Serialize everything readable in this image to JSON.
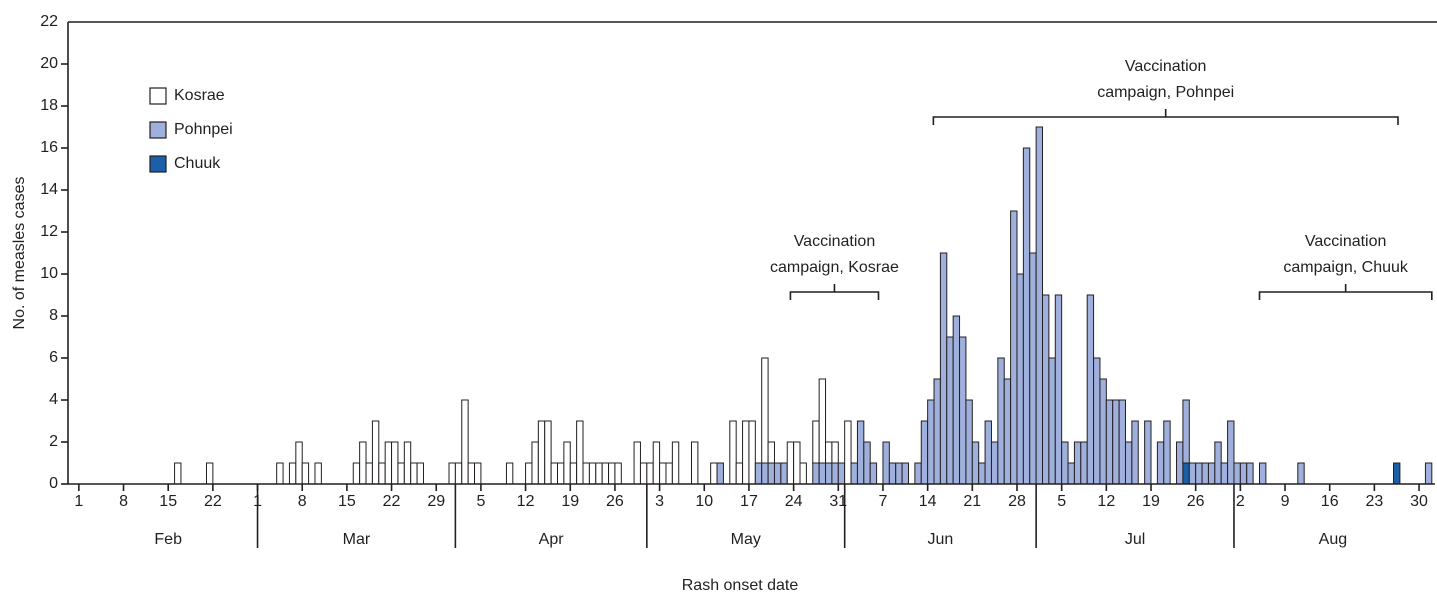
{
  "chart_data": {
    "type": "bar",
    "stacked": true,
    "xlabel": "Rash onset date",
    "ylabel": "No. of measles cases",
    "xlim": [
      -1.7,
      212.5
    ],
    "ylim": [
      0,
      22
    ],
    "yticks": [
      0,
      2,
      4,
      6,
      8,
      10,
      12,
      14,
      16,
      18,
      20,
      22
    ],
    "xticks": [
      {
        "value": 0,
        "label": "1"
      },
      {
        "value": 7,
        "label": "8"
      },
      {
        "value": 14,
        "label": "15"
      },
      {
        "value": 21,
        "label": "22"
      },
      {
        "value": 28,
        "label": "1"
      },
      {
        "value": 35,
        "label": "8"
      },
      {
        "value": 42,
        "label": "15"
      },
      {
        "value": 49,
        "label": "22"
      },
      {
        "value": 56,
        "label": "29"
      },
      {
        "value": 63,
        "label": "5"
      },
      {
        "value": 70,
        "label": "12"
      },
      {
        "value": 77,
        "label": "19"
      },
      {
        "value": 84,
        "label": "26"
      },
      {
        "value": 91,
        "label": "3"
      },
      {
        "value": 98,
        "label": "10"
      },
      {
        "value": 105,
        "label": "17"
      },
      {
        "value": 112,
        "label": "24"
      },
      {
        "value": 119,
        "label": "31"
      },
      {
        "value": 126,
        "label": "7"
      },
      {
        "value": 133,
        "label": "14"
      },
      {
        "value": 140,
        "label": "21"
      },
      {
        "value": 147,
        "label": "28"
      },
      {
        "value": 154,
        "label": "5"
      },
      {
        "value": 161,
        "label": "12"
      },
      {
        "value": 168,
        "label": "19"
      },
      {
        "value": 175,
        "label": "26"
      },
      {
        "value": 182,
        "label": "2"
      },
      {
        "value": 189,
        "label": "9"
      },
      {
        "value": 196,
        "label": "16"
      },
      {
        "value": 203,
        "label": "23"
      },
      {
        "value": 210,
        "label": "30"
      }
    ],
    "months": [
      {
        "label": "Feb",
        "start": 0,
        "end": 28
      },
      {
        "label": "Mar",
        "start": 28,
        "end": 59
      },
      {
        "label": "Apr",
        "start": 59,
        "end": 89
      },
      {
        "label": "May",
        "start": 89,
        "end": 120
      },
      {
        "label": "Jun",
        "start": 120,
        "end": 150
      },
      {
        "label": "Jul",
        "start": 150,
        "end": 181
      },
      {
        "label": "Aug",
        "start": 181,
        "end": 212
      }
    ],
    "legend": "upper left",
    "x": [
      15,
      20,
      31,
      33,
      34,
      35,
      37,
      43,
      44,
      45,
      46,
      47,
      48,
      49,
      50,
      51,
      52,
      53,
      58,
      59,
      60,
      61,
      62,
      67,
      70,
      71,
      72,
      73,
      74,
      75,
      76,
      77,
      78,
      79,
      80,
      81,
      82,
      83,
      84,
      87,
      88,
      89,
      90,
      91,
      92,
      93,
      96,
      99,
      100,
      102,
      103,
      104,
      105,
      106,
      107,
      108,
      109,
      110,
      111,
      112,
      113,
      115,
      116,
      117,
      118,
      119,
      120,
      121,
      122,
      123,
      124,
      126,
      127,
      128,
      129,
      131,
      132,
      133,
      134,
      135,
      136,
      137,
      138,
      139,
      140,
      141,
      142,
      143,
      144,
      145,
      146,
      147,
      148,
      149,
      150,
      151,
      152,
      153,
      154,
      155,
      156,
      157,
      158,
      159,
      160,
      161,
      162,
      163,
      164,
      165,
      167,
      169,
      170,
      172,
      173,
      174,
      175,
      176,
      177,
      178,
      179,
      180,
      181,
      182,
      183,
      185,
      191,
      206,
      211
    ],
    "series": [
      {
        "name": "Kosrae",
        "color": "#ffffff",
        "values": [
          1,
          1,
          1,
          1,
          2,
          1,
          1,
          1,
          2,
          1,
          3,
          1,
          2,
          2,
          1,
          2,
          1,
          1,
          1,
          1,
          4,
          1,
          1,
          1,
          1,
          2,
          3,
          3,
          1,
          1,
          2,
          1,
          3,
          1,
          1,
          1,
          1,
          1,
          1,
          2,
          1,
          1,
          2,
          1,
          1,
          2,
          2,
          1,
          0,
          3,
          1,
          3,
          3,
          0,
          5,
          1,
          0,
          0,
          2,
          2,
          1,
          2,
          4,
          1,
          1,
          0,
          3,
          0,
          0,
          0,
          0,
          0,
          0,
          0,
          0,
          0,
          0,
          0,
          0,
          0,
          0,
          0,
          0,
          0,
          0,
          0,
          0,
          0,
          0,
          0,
          0,
          0,
          0,
          0,
          0,
          0,
          0,
          0,
          0,
          0,
          0,
          0,
          0,
          0,
          0,
          0,
          0,
          0,
          0,
          0,
          0,
          0,
          0,
          0,
          0,
          0,
          0,
          0,
          0,
          0,
          0,
          0,
          0,
          0,
          0,
          0,
          0,
          0,
          0
        ]
      },
      {
        "name": "Pohnpei",
        "color": "#9fb0dc",
        "values": [
          0,
          0,
          0,
          0,
          0,
          0,
          0,
          0,
          0,
          0,
          0,
          0,
          0,
          0,
          0,
          0,
          0,
          0,
          0,
          0,
          0,
          0,
          0,
          0,
          0,
          0,
          0,
          0,
          0,
          0,
          0,
          0,
          0,
          0,
          0,
          0,
          0,
          0,
          0,
          0,
          0,
          0,
          0,
          0,
          0,
          0,
          0,
          0,
          1,
          0,
          0,
          0,
          0,
          1,
          1,
          1,
          1,
          1,
          0,
          0,
          0,
          1,
          1,
          1,
          1,
          1,
          0,
          1,
          3,
          2,
          1,
          2,
          1,
          1,
          1,
          1,
          3,
          4,
          5,
          11,
          7,
          8,
          7,
          4,
          2,
          1,
          3,
          2,
          6,
          5,
          13,
          10,
          16,
          11,
          17,
          9,
          6,
          9,
          2,
          1,
          2,
          2,
          9,
          6,
          5,
          4,
          4,
          4,
          2,
          3,
          3,
          2,
          3,
          2,
          3,
          1,
          1,
          1,
          1,
          2,
          1,
          3,
          1,
          1,
          1,
          1,
          1,
          0,
          1
        ]
      },
      {
        "name": "Chuuk",
        "color": "#1b5fa8",
        "values": [
          0,
          0,
          0,
          0,
          0,
          0,
          0,
          0,
          0,
          0,
          0,
          0,
          0,
          0,
          0,
          0,
          0,
          0,
          0,
          0,
          0,
          0,
          0,
          0,
          0,
          0,
          0,
          0,
          0,
          0,
          0,
          0,
          0,
          0,
          0,
          0,
          0,
          0,
          0,
          0,
          0,
          0,
          0,
          0,
          0,
          0,
          0,
          0,
          0,
          0,
          0,
          0,
          0,
          0,
          0,
          0,
          0,
          0,
          0,
          0,
          0,
          0,
          0,
          0,
          0,
          0,
          0,
          0,
          0,
          0,
          0,
          0,
          0,
          0,
          0,
          0,
          0,
          0,
          0,
          0,
          0,
          0,
          0,
          0,
          0,
          0,
          0,
          0,
          0,
          0,
          0,
          0,
          0,
          0,
          0,
          0,
          0,
          0,
          0,
          0,
          0,
          0,
          0,
          0,
          0,
          0,
          0,
          0,
          0,
          0,
          0,
          0,
          0,
          0,
          1,
          0,
          0,
          0,
          0,
          0,
          0,
          0,
          0,
          0,
          0,
          0,
          0,
          1,
          0
        ]
      }
    ],
    "annotations": [
      {
        "lines": [
          "Vaccination",
          "campaign, Kosrae"
        ],
        "start": 111.5,
        "end": 125.3
      },
      {
        "lines": [
          "Vaccination",
          "campaign, Pohnpei"
        ],
        "start": 133.9,
        "end": 206.7
      },
      {
        "lines": [
          "Vaccination",
          "campaign, Chuuk"
        ],
        "start": 185,
        "end": 212
      }
    ]
  }
}
